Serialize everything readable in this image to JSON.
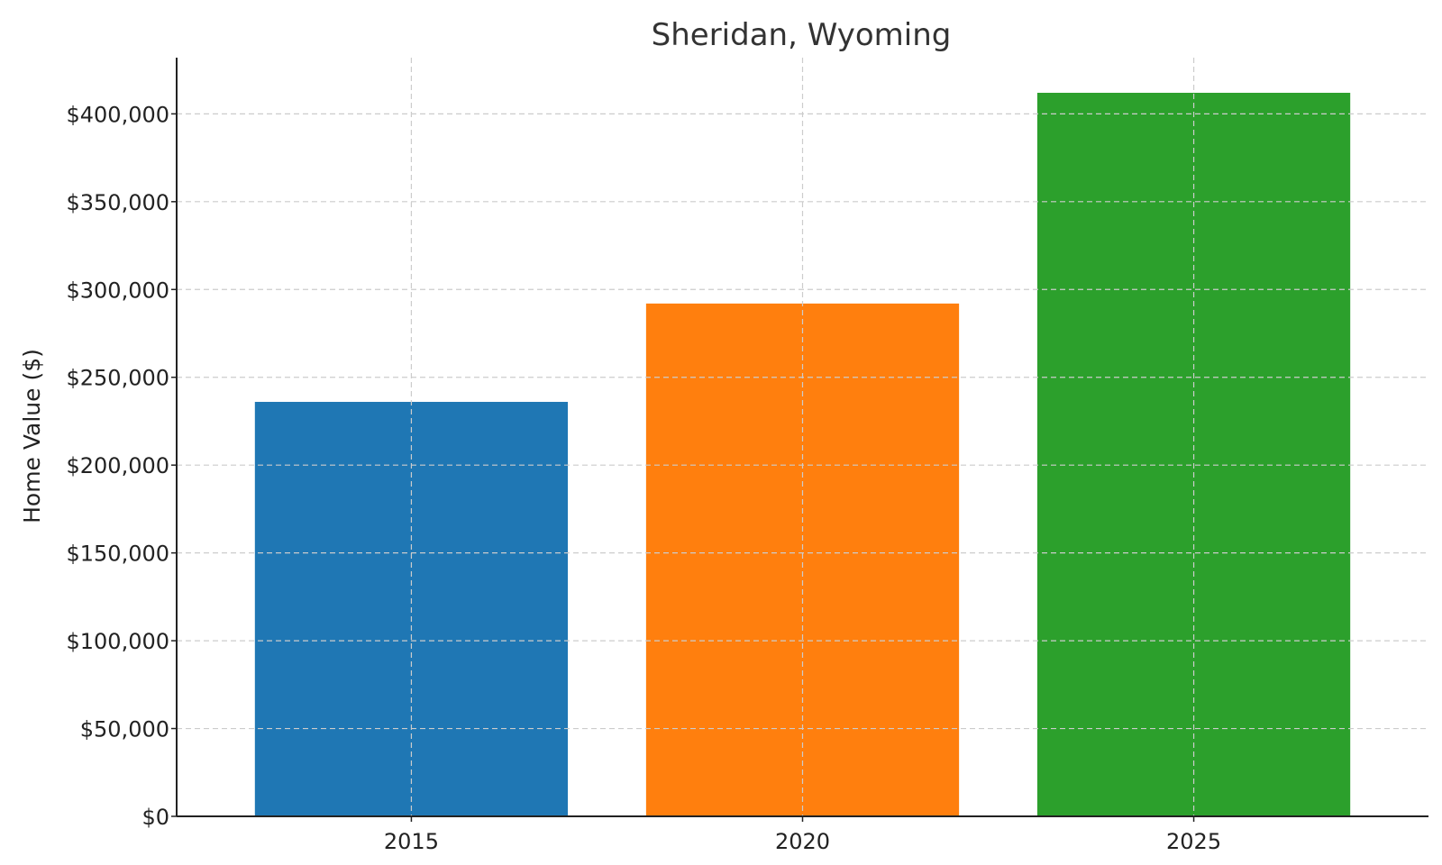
{
  "chart_data": {
    "type": "bar",
    "title": "Sheridan, Wyoming",
    "xlabel": "",
    "ylabel": "Home Value ($)",
    "categories": [
      "2015",
      "2020",
      "2025"
    ],
    "values": [
      236000,
      292000,
      412000
    ],
    "colors": [
      "#1f77b4",
      "#ff7f0e",
      "#2ca02c"
    ],
    "ylim": [
      0,
      432000
    ],
    "yticks": [
      0,
      50000,
      100000,
      150000,
      200000,
      250000,
      300000,
      350000,
      400000
    ],
    "ytick_labels": [
      "$0",
      "$50,000",
      "$100,000",
      "$150,000",
      "$200,000",
      "$250,000",
      "$300,000",
      "$350,000",
      "$400,000"
    ],
    "grid": true,
    "legend": false
  }
}
